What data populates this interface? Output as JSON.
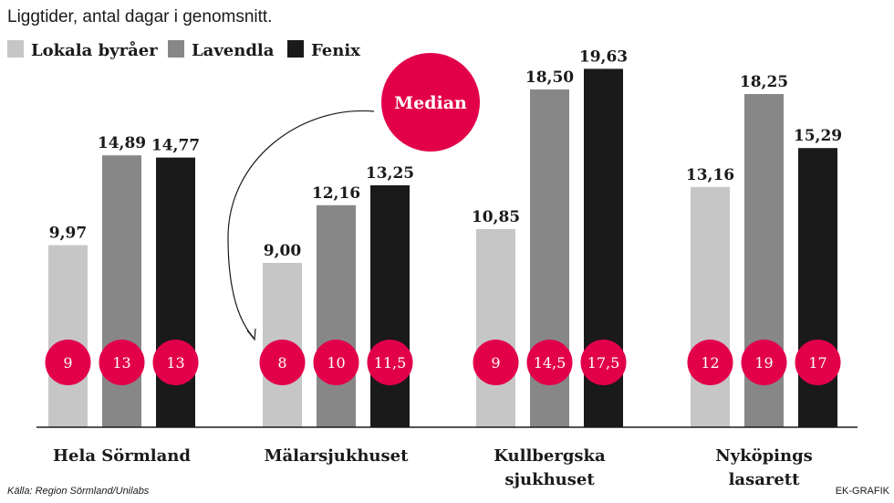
{
  "subtitle": "Liggtider, antal dagar i genomsnitt.",
  "median_label": "Median",
  "source": "Källa: Region Sörmland/Unilabs",
  "credit": "EK-GRAFIK",
  "colors": {
    "lokala": "#c6c6c6",
    "lavendla": "#878787",
    "fenix": "#1a1a1a",
    "median": "#e2004a",
    "text": "#1a1a1a",
    "axis": "#1a1a1a"
  },
  "chart_data": {
    "type": "bar",
    "categories": [
      [
        "Hela Sörmland"
      ],
      [
        "Mälarsjukhuset"
      ],
      [
        "Kullbergska",
        "sjukhuset"
      ],
      [
        "Nyköpings",
        "lasarett"
      ]
    ],
    "series": [
      {
        "name": "Lokala byråer",
        "color_key": "lokala",
        "values": [
          9.97,
          9.0,
          10.85,
          13.16
        ],
        "labels": [
          "9,97",
          "9,00",
          "10,85",
          "13,16"
        ],
        "medians": [
          "9",
          "8",
          "9",
          "12"
        ]
      },
      {
        "name": "Lavendla",
        "color_key": "lavendla",
        "values": [
          14.89,
          12.16,
          18.5,
          18.25
        ],
        "labels": [
          "14,89",
          "12,16",
          "18,50",
          "18,25"
        ],
        "medians": [
          "13",
          "10",
          "14,5",
          "19"
        ]
      },
      {
        "name": "Fenix",
        "color_key": "fenix",
        "values": [
          14.77,
          13.25,
          19.63,
          15.29
        ],
        "labels": [
          "14,77",
          "13,25",
          "19,63",
          "15,29"
        ],
        "medians": [
          "13",
          "11,5",
          "17,5",
          "17"
        ]
      }
    ],
    "ylim": [
      0,
      22
    ],
    "legend_position": "top-left",
    "grid": false
  }
}
